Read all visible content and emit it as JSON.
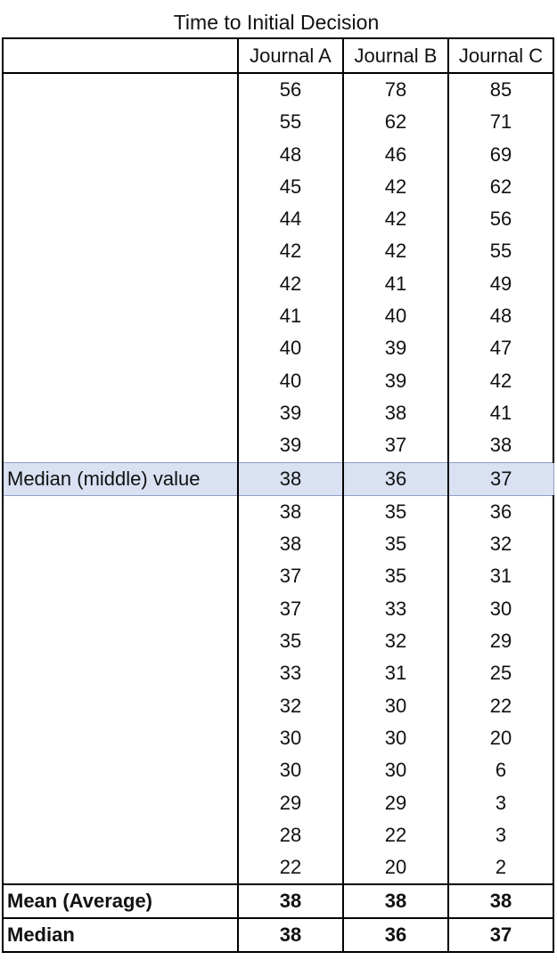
{
  "title": "Time to Initial Decision",
  "columns": [
    "",
    "Journal A",
    "Journal B",
    "Journal C"
  ],
  "rows": [
    {
      "label": "",
      "a": "56",
      "b": "78",
      "c": "85"
    },
    {
      "label": "",
      "a": "55",
      "b": "62",
      "c": "71"
    },
    {
      "label": "",
      "a": "48",
      "b": "46",
      "c": "69"
    },
    {
      "label": "",
      "a": "45",
      "b": "42",
      "c": "62"
    },
    {
      "label": "",
      "a": "44",
      "b": "42",
      "c": "56"
    },
    {
      "label": "",
      "a": "42",
      "b": "42",
      "c": "55"
    },
    {
      "label": "",
      "a": "42",
      "b": "41",
      "c": "49"
    },
    {
      "label": "",
      "a": "41",
      "b": "40",
      "c": "48"
    },
    {
      "label": "",
      "a": "40",
      "b": "39",
      "c": "47"
    },
    {
      "label": "",
      "a": "40",
      "b": "39",
      "c": "42"
    },
    {
      "label": "",
      "a": "39",
      "b": "38",
      "c": "41"
    },
    {
      "label": "",
      "a": "39",
      "b": "37",
      "c": "38"
    },
    {
      "label": "Median (middle) value",
      "a": "38",
      "b": "36",
      "c": "37",
      "highlight": true
    },
    {
      "label": "",
      "a": "38",
      "b": "35",
      "c": "36"
    },
    {
      "label": "",
      "a": "38",
      "b": "35",
      "c": "32"
    },
    {
      "label": "",
      "a": "37",
      "b": "35",
      "c": "31"
    },
    {
      "label": "",
      "a": "37",
      "b": "33",
      "c": "30"
    },
    {
      "label": "",
      "a": "35",
      "b": "32",
      "c": "29"
    },
    {
      "label": "",
      "a": "33",
      "b": "31",
      "c": "25"
    },
    {
      "label": "",
      "a": "32",
      "b": "30",
      "c": "22"
    },
    {
      "label": "",
      "a": "30",
      "b": "30",
      "c": "20"
    },
    {
      "label": "",
      "a": "30",
      "b": "30",
      "c": "6"
    },
    {
      "label": "",
      "a": "29",
      "b": "29",
      "c": "3"
    },
    {
      "label": "",
      "a": "28",
      "b": "22",
      "c": "3"
    },
    {
      "label": "",
      "a": "22",
      "b": "20",
      "c": "2"
    }
  ],
  "summary": [
    {
      "label": "Mean (Average)",
      "a": "38",
      "b": "38",
      "c": "38"
    },
    {
      "label": "Median",
      "a": "38",
      "b": "36",
      "c": "37"
    }
  ],
  "colors": {
    "highlight": "#d9e1f2",
    "border": "#000000"
  }
}
